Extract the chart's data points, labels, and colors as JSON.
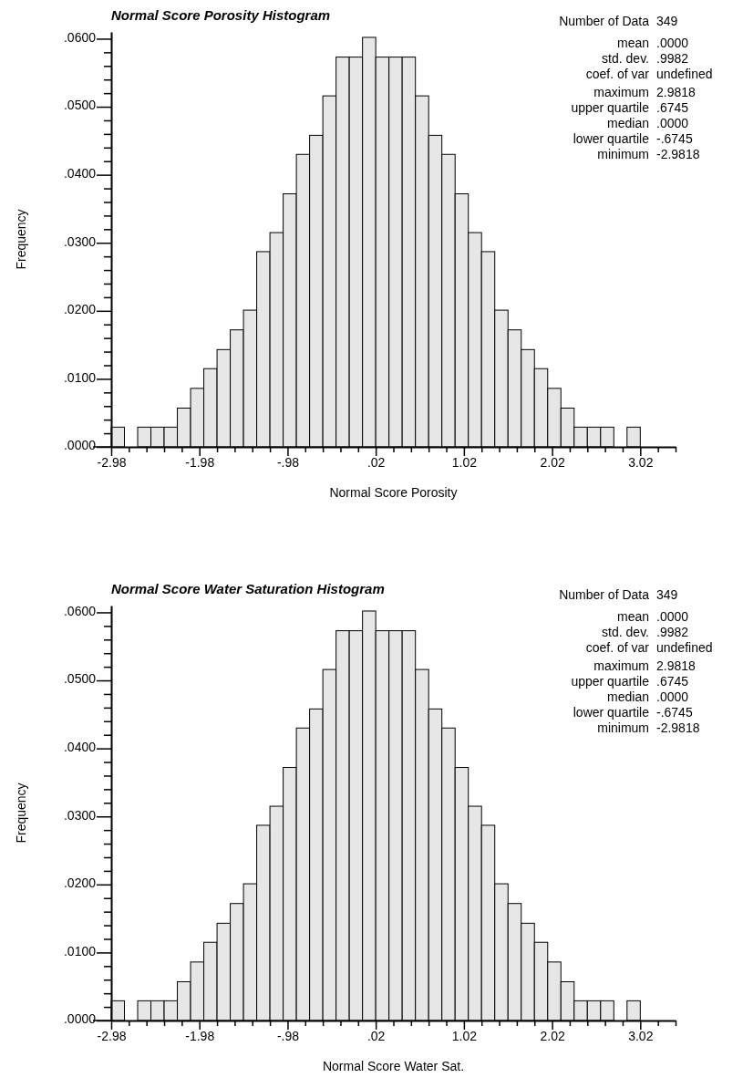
{
  "chart_data": [
    {
      "type": "histogram",
      "title": "Normal Score Porosity Histogram",
      "xlabel": "Normal Score Porosity",
      "ylabel": "Frequency",
      "color": "#e6e6e6",
      "bins": [
        -2.98,
        -2.83,
        -2.68,
        -2.53,
        -2.38,
        -2.23,
        -2.08,
        -1.93,
        -1.78,
        -1.63,
        -1.48,
        -1.33,
        -1.18,
        -1.03,
        -0.88,
        -0.73,
        -0.58,
        -0.43,
        -0.28,
        -0.13,
        0.02,
        0.17,
        0.32,
        0.47,
        0.62,
        0.77,
        0.92,
        1.07,
        1.22,
        1.37,
        1.52,
        1.67,
        1.82,
        1.97,
        2.12,
        2.27,
        2.42,
        2.57,
        2.72,
        2.87,
        3.02
      ],
      "values": [
        0.0029,
        0,
        0.0029,
        0.0029,
        0.0029,
        0.0057,
        0.0086,
        0.0115,
        0.0143,
        0.0172,
        0.0201,
        0.0287,
        0.0315,
        0.0372,
        0.043,
        0.0458,
        0.0516,
        0.0573,
        0.0573,
        0.0602,
        0.0573,
        0.0573,
        0.0573,
        0.0516,
        0.0458,
        0.043,
        0.0372,
        0.0315,
        0.0287,
        0.0201,
        0.0172,
        0.0143,
        0.0115,
        0.0086,
        0.0057,
        0.0029,
        0.0029,
        0.0029,
        0,
        0.0029
      ],
      "xlim": [
        -2.98,
        3.42
      ],
      "xticks": [
        -2.98,
        {
          "value": -2.78,
          "label": null
        },
        {
          "value": -2.58,
          "label": null
        },
        {
          "value": -2.38,
          "label": null
        },
        {
          "value": -2.18,
          "label": null
        },
        -1.98,
        {
          "value": -1.78,
          "label": null
        },
        {
          "value": -1.58,
          "label": null
        },
        {
          "value": -1.38,
          "label": null
        },
        {
          "value": -1.18,
          "label": null
        },
        {
          "value": -0.98,
          "label": "-.98"
        },
        {
          "value": -0.78,
          "label": null
        },
        {
          "value": -0.58,
          "label": null
        },
        {
          "value": -0.38,
          "label": null
        },
        {
          "value": -0.18,
          "label": null
        },
        {
          "value": 0.02,
          "label": ".02"
        },
        {
          "value": 0.22,
          "label": null
        },
        {
          "value": 0.42,
          "label": null
        },
        {
          "value": 0.62,
          "label": null
        },
        {
          "value": 0.82,
          "label": null
        },
        1.02,
        {
          "value": 1.22,
          "label": null
        },
        {
          "value": 1.42,
          "label": null
        },
        {
          "value": 1.62,
          "label": null
        },
        {
          "value": 1.82,
          "label": null
        },
        2.02,
        {
          "value": 2.22,
          "label": null
        },
        {
          "value": 2.42,
          "label": null
        },
        {
          "value": 2.62,
          "label": null
        },
        {
          "value": 2.82,
          "label": null
        },
        3.02,
        {
          "value": 3.22,
          "label": null
        },
        {
          "value": 3.42,
          "label": null
        }
      ],
      "ylim": [
        0,
        0.061
      ],
      "yticks": [
        {
          "value": 0,
          "label": ".0000"
        },
        {
          "value": 0.002,
          "label": null
        },
        {
          "value": 0.004,
          "label": null
        },
        {
          "value": 0.006,
          "label": null
        },
        {
          "value": 0.008,
          "label": null
        },
        {
          "value": 0.01,
          "label": ".0100"
        },
        {
          "value": 0.012,
          "label": null
        },
        {
          "value": 0.014,
          "label": null
        },
        {
          "value": 0.016,
          "label": null
        },
        {
          "value": 0.018,
          "label": null
        },
        {
          "value": 0.02,
          "label": ".0200"
        },
        {
          "value": 0.022,
          "label": null
        },
        {
          "value": 0.024,
          "label": null
        },
        {
          "value": 0.026,
          "label": null
        },
        {
          "value": 0.028,
          "label": null
        },
        {
          "value": 0.03,
          "label": ".0300"
        },
        {
          "value": 0.032,
          "label": null
        },
        {
          "value": 0.034,
          "label": null
        },
        {
          "value": 0.036,
          "label": null
        },
        {
          "value": 0.038,
          "label": null
        },
        {
          "value": 0.04,
          "label": ".0400"
        },
        {
          "value": 0.042,
          "label": null
        },
        {
          "value": 0.044,
          "label": null
        },
        {
          "value": 0.046,
          "label": null
        },
        {
          "value": 0.048,
          "label": null
        },
        {
          "value": 0.05,
          "label": ".0500"
        },
        {
          "value": 0.052,
          "label": null
        },
        {
          "value": 0.054,
          "label": null
        },
        {
          "value": 0.056,
          "label": null
        },
        {
          "value": 0.058,
          "label": null
        },
        {
          "value": 0.06,
          "label": ".0600"
        }
      ],
      "annotations": [
        "Number of Data 349",
        "mean .0000",
        "std. dev. .9982",
        "coef. of var undefined",
        "maximum 2.9818",
        "upper quartile .6745",
        "median .0000",
        "lower quartile -.6745",
        "minimum -2.9818"
      ]
    },
    {
      "type": "histogram",
      "title": "Normal Score Water Saturation Histogram",
      "xlabel": "Normal Score Water Sat.",
      "ylabel": "Frequency",
      "color": "#e6e6e6",
      "bins": [
        -2.98,
        -2.83,
        -2.68,
        -2.53,
        -2.38,
        -2.23,
        -2.08,
        -1.93,
        -1.78,
        -1.63,
        -1.48,
        -1.33,
        -1.18,
        -1.03,
        -0.88,
        -0.73,
        -0.58,
        -0.43,
        -0.28,
        -0.13,
        0.02,
        0.17,
        0.32,
        0.47,
        0.62,
        0.77,
        0.92,
        1.07,
        1.22,
        1.37,
        1.52,
        1.67,
        1.82,
        1.97,
        2.12,
        2.27,
        2.42,
        2.57,
        2.72,
        2.87,
        3.02
      ],
      "values": [
        0.0029,
        0,
        0.0029,
        0.0029,
        0.0029,
        0.0057,
        0.0086,
        0.0115,
        0.0143,
        0.0172,
        0.0201,
        0.0287,
        0.0315,
        0.0372,
        0.043,
        0.0458,
        0.0516,
        0.0573,
        0.0573,
        0.0602,
        0.0573,
        0.0573,
        0.0573,
        0.0516,
        0.0458,
        0.043,
        0.0372,
        0.0315,
        0.0287,
        0.0201,
        0.0172,
        0.0143,
        0.0115,
        0.0086,
        0.0057,
        0.0029,
        0.0029,
        0.0029,
        0,
        0.0029
      ],
      "xlim": [
        -2.98,
        3.42
      ],
      "xticks": [
        -2.98,
        {
          "value": -2.78,
          "label": null
        },
        {
          "value": -2.58,
          "label": null
        },
        {
          "value": -2.38,
          "label": null
        },
        {
          "value": -2.18,
          "label": null
        },
        -1.98,
        {
          "value": -1.78,
          "label": null
        },
        {
          "value": -1.58,
          "label": null
        },
        {
          "value": -1.38,
          "label": null
        },
        {
          "value": -1.18,
          "label": null
        },
        {
          "value": -0.98,
          "label": "-.98"
        },
        {
          "value": -0.78,
          "label": null
        },
        {
          "value": -0.58,
          "label": null
        },
        {
          "value": -0.38,
          "label": null
        },
        {
          "value": -0.18,
          "label": null
        },
        {
          "value": 0.02,
          "label": ".02"
        },
        {
          "value": 0.22,
          "label": null
        },
        {
          "value": 0.42,
          "label": null
        },
        {
          "value": 0.62,
          "label": null
        },
        {
          "value": 0.82,
          "label": null
        },
        1.02,
        {
          "value": 1.22,
          "label": null
        },
        {
          "value": 1.42,
          "label": null
        },
        {
          "value": 1.62,
          "label": null
        },
        {
          "value": 1.82,
          "label": null
        },
        2.02,
        {
          "value": 2.22,
          "label": null
        },
        {
          "value": 2.42,
          "label": null
        },
        {
          "value": 2.62,
          "label": null
        },
        {
          "value": 2.82,
          "label": null
        },
        3.02,
        {
          "value": 3.22,
          "label": null
        },
        {
          "value": 3.42,
          "label": null
        }
      ],
      "ylim": [
        0,
        0.061
      ],
      "yticks": [
        {
          "value": 0,
          "label": ".0000"
        },
        {
          "value": 0.002,
          "label": null
        },
        {
          "value": 0.004,
          "label": null
        },
        {
          "value": 0.006,
          "label": null
        },
        {
          "value": 0.008,
          "label": null
        },
        {
          "value": 0.01,
          "label": ".0100"
        },
        {
          "value": 0.012,
          "label": null
        },
        {
          "value": 0.014,
          "label": null
        },
        {
          "value": 0.016,
          "label": null
        },
        {
          "value": 0.018,
          "label": null
        },
        {
          "value": 0.02,
          "label": ".0200"
        },
        {
          "value": 0.022,
          "label": null
        },
        {
          "value": 0.024,
          "label": null
        },
        {
          "value": 0.026,
          "label": null
        },
        {
          "value": 0.028,
          "label": null
        },
        {
          "value": 0.03,
          "label": ".0300"
        },
        {
          "value": 0.032,
          "label": null
        },
        {
          "value": 0.034,
          "label": null
        },
        {
          "value": 0.036,
          "label": null
        },
        {
          "value": 0.038,
          "label": null
        },
        {
          "value": 0.04,
          "label": ".0400"
        },
        {
          "value": 0.042,
          "label": null
        },
        {
          "value": 0.044,
          "label": null
        },
        {
          "value": 0.046,
          "label": null
        },
        {
          "value": 0.048,
          "label": null
        },
        {
          "value": 0.05,
          "label": ".0500"
        },
        {
          "value": 0.052,
          "label": null
        },
        {
          "value": 0.054,
          "label": null
        },
        {
          "value": 0.056,
          "label": null
        },
        {
          "value": 0.058,
          "label": null
        },
        {
          "value": 0.06,
          "label": ".0600"
        }
      ],
      "annotations": [
        "Number of Data 349",
        "mean .0000",
        "std. dev. .9982",
        "coef. of var undefined",
        "maximum 2.9818",
        "upper quartile .6745",
        "median .0000",
        "lower quartile -.6745",
        "minimum -2.9818"
      ]
    }
  ]
}
